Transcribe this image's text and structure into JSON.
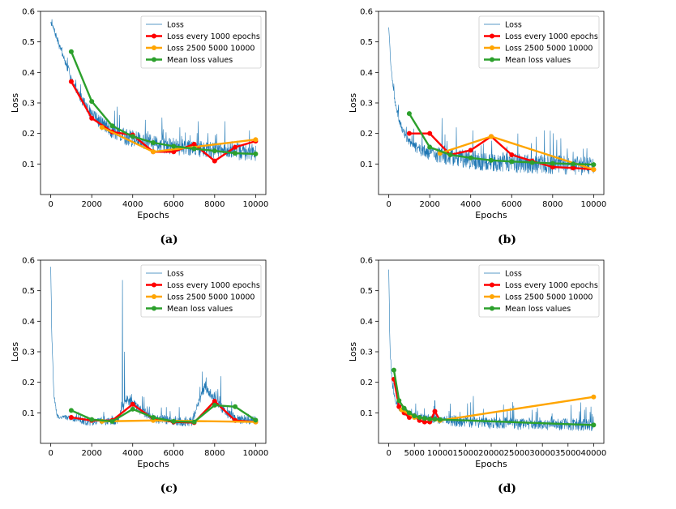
{
  "panels": [
    {
      "caption": "(a)"
    },
    {
      "caption": "(b)"
    },
    {
      "caption": "(c)"
    },
    {
      "caption": "(d)"
    }
  ],
  "colors": {
    "loss": "#1f77b4",
    "every1000": "#ff0000",
    "l2500": "#ffa500",
    "mean": "#2ca02c"
  },
  "chart_data": [
    {
      "type": "line",
      "panel": "(a)",
      "xlabel": "Epochs",
      "ylabel": "Loss",
      "xlim": [
        -500,
        10500
      ],
      "ylim": [
        0.0,
        0.6
      ],
      "xticks": [
        0,
        2000,
        4000,
        6000,
        8000,
        10000
      ],
      "yticks": [
        0.1,
        0.2,
        0.3,
        0.4,
        0.5,
        0.6
      ],
      "legend": [
        "Loss",
        "Loss every 1000 epochs",
        "Loss 2500 5000 10000",
        "Mean loss values"
      ],
      "legend_position": "top-right",
      "loss_curve": {
        "name": "Loss",
        "x": [
          0,
          200,
          500,
          1000,
          1500,
          2000,
          2500,
          3000,
          3500,
          4000,
          5000,
          6000,
          7000,
          8000,
          9000,
          10000
        ],
        "y": [
          0.565,
          0.53,
          0.47,
          0.38,
          0.31,
          0.26,
          0.23,
          0.205,
          0.19,
          0.18,
          0.165,
          0.155,
          0.148,
          0.142,
          0.138,
          0.135
        ],
        "noise": [
          0.012,
          0.035
        ],
        "spikes": [
          [
            6300,
            0.22
          ],
          [
            7200,
            0.24
          ],
          [
            8500,
            0.24
          ],
          [
            9700,
            0.21
          ]
        ]
      },
      "series": [
        {
          "name": "Loss every 1000 epochs",
          "x": [
            1000,
            2000,
            3000,
            4000,
            5000,
            6000,
            7000,
            8000,
            9000,
            10000
          ],
          "y": [
            0.37,
            0.25,
            0.205,
            0.195,
            0.14,
            0.14,
            0.165,
            0.11,
            0.155,
            0.175
          ]
        },
        {
          "name": "Loss 2500 5000 10000",
          "x": [
            2500,
            5000,
            10000
          ],
          "y": [
            0.22,
            0.14,
            0.18
          ]
        },
        {
          "name": "Mean loss values",
          "x": [
            1000,
            2000,
            3000,
            4000,
            5000,
            6000,
            7000,
            8000,
            9000,
            10000
          ],
          "y": [
            0.468,
            0.305,
            0.225,
            0.19,
            0.17,
            0.158,
            0.15,
            0.143,
            0.135,
            0.133
          ]
        }
      ]
    },
    {
      "type": "line",
      "panel": "(b)",
      "xlabel": "Epochs",
      "ylabel": "Loss",
      "xlim": [
        -500,
        10500
      ],
      "ylim": [
        0.0,
        0.6
      ],
      "xticks": [
        0,
        2000,
        4000,
        6000,
        8000,
        10000
      ],
      "yticks": [
        0.1,
        0.2,
        0.3,
        0.4,
        0.5,
        0.6
      ],
      "legend": [
        "Loss",
        "Loss every 1000 epochs",
        "Loss 2500 5000 10000",
        "Mean loss values"
      ],
      "legend_position": "top-right",
      "loss_curve": {
        "name": "Loss",
        "x": [
          0,
          100,
          300,
          600,
          1000,
          1500,
          2000,
          3000,
          4000,
          5000,
          6000,
          7000,
          8000,
          9000,
          10000
        ],
        "y": [
          0.55,
          0.42,
          0.3,
          0.22,
          0.17,
          0.145,
          0.13,
          0.12,
          0.11,
          0.105,
          0.1,
          0.097,
          0.094,
          0.091,
          0.088
        ],
        "noise": [
          0.01,
          0.04
        ],
        "spikes": [
          [
            2600,
            0.25
          ],
          [
            3300,
            0.22
          ],
          [
            4100,
            0.21
          ],
          [
            6300,
            0.2
          ],
          [
            7600,
            0.21
          ],
          [
            9500,
            0.15
          ]
        ]
      },
      "series": [
        {
          "name": "Loss every 1000 epochs",
          "x": [
            1000,
            2000,
            3000,
            4000,
            5000,
            6000,
            7000,
            8000,
            9000,
            10000
          ],
          "y": [
            0.2,
            0.2,
            0.13,
            0.145,
            0.19,
            0.13,
            0.11,
            0.09,
            0.087,
            0.082
          ]
        },
        {
          "name": "Loss 2500 5000 10000",
          "x": [
            2500,
            5000,
            10000
          ],
          "y": [
            0.135,
            0.19,
            0.082
          ]
        },
        {
          "name": "Mean loss values",
          "x": [
            1000,
            2000,
            3000,
            4000,
            5000,
            6000,
            7000,
            8000,
            9000,
            10000
          ],
          "y": [
            0.265,
            0.155,
            0.13,
            0.12,
            0.112,
            0.108,
            0.105,
            0.102,
            0.1,
            0.098
          ]
        }
      ]
    },
    {
      "type": "line",
      "panel": "(c)",
      "xlabel": "Epochs",
      "ylabel": "Loss",
      "xlim": [
        -500,
        10500
      ],
      "ylim": [
        0.0,
        0.6
      ],
      "xticks": [
        0,
        2000,
        4000,
        6000,
        8000,
        10000
      ],
      "yticks": [
        0.1,
        0.2,
        0.3,
        0.4,
        0.5,
        0.6
      ],
      "legend": [
        "Loss",
        "Loss every 1000 epochs",
        "Loss 2500 5000 10000",
        "Mean loss values"
      ],
      "legend_position": "top-right",
      "loss_curve": {
        "name": "Loss",
        "x": [
          0,
          50,
          150,
          300,
          500,
          1000,
          1800,
          2500,
          3300,
          3700,
          4000,
          4300,
          5000,
          6000,
          6900,
          7500,
          8000,
          8500,
          9000,
          10000
        ],
        "y": [
          0.58,
          0.35,
          0.16,
          0.09,
          0.085,
          0.082,
          0.068,
          0.072,
          0.075,
          0.14,
          0.13,
          0.11,
          0.08,
          0.072,
          0.07,
          0.18,
          0.15,
          0.1,
          0.08,
          0.072
        ],
        "noise": [
          0.008,
          0.02
        ],
        "spikes": [
          [
            3500,
            0.535
          ],
          [
            3600,
            0.3
          ],
          [
            7400,
            0.235
          ],
          [
            8300,
            0.22
          ]
        ]
      },
      "series": [
        {
          "name": "Loss every 1000 epochs",
          "x": [
            1000,
            2000,
            3000,
            4000,
            5000,
            6000,
            7000,
            8000,
            9000,
            10000
          ],
          "y": [
            0.085,
            0.075,
            0.075,
            0.128,
            0.08,
            0.07,
            0.068,
            0.138,
            0.075,
            0.07
          ]
        },
        {
          "name": "Loss 2500 5000 10000",
          "x": [
            2500,
            5000,
            10000
          ],
          "y": [
            0.072,
            0.075,
            0.07
          ]
        },
        {
          "name": "Mean loss values",
          "x": [
            1000,
            2000,
            3000,
            4000,
            5000,
            6000,
            7000,
            8000,
            9000,
            10000
          ],
          "y": [
            0.108,
            0.078,
            0.072,
            0.112,
            0.085,
            0.072,
            0.07,
            0.125,
            0.12,
            0.076
          ]
        }
      ]
    },
    {
      "type": "line",
      "panel": "(d)",
      "xlabel": "Epochs",
      "ylabel": "Loss",
      "xlim": [
        -2000,
        42000
      ],
      "ylim": [
        0.0,
        0.6
      ],
      "xticks": [
        0,
        5000,
        10000,
        15000,
        20000,
        25000,
        30000,
        35000,
        40000
      ],
      "yticks": [
        0.1,
        0.2,
        0.3,
        0.4,
        0.5,
        0.6
      ],
      "legend": [
        "Loss",
        "Loss every 1000 epochs",
        "Loss 2500 5000 10000",
        "Mean loss values"
      ],
      "legend_position": "top-right",
      "loss_curve": {
        "name": "Loss",
        "x": [
          0,
          200,
          500,
          1000,
          1500,
          2000,
          3000,
          4000,
          6000,
          8000,
          10000,
          15000,
          20000,
          25000,
          30000,
          35000,
          40000
        ],
        "y": [
          0.57,
          0.33,
          0.22,
          0.16,
          0.13,
          0.115,
          0.1,
          0.09,
          0.085,
          0.08,
          0.075,
          0.07,
          0.066,
          0.063,
          0.061,
          0.06,
          0.058
        ],
        "noise": [
          0.008,
          0.025
        ],
        "spikes": [
          [
            16500,
            0.155
          ],
          [
            9000,
            0.14
          ],
          [
            12000,
            0.13
          ],
          [
            28000,
            0.11
          ],
          [
            39500,
            0.12
          ]
        ]
      },
      "series": [
        {
          "name": "Loss every 1000 epochs",
          "x": [
            1000,
            2000,
            3000,
            4000,
            5000,
            6000,
            7000,
            8000,
            9000,
            10000
          ],
          "y": [
            0.21,
            0.12,
            0.1,
            0.085,
            0.09,
            0.075,
            0.07,
            0.07,
            0.105,
            0.075
          ]
        },
        {
          "name": "Loss 2500 5000 10000",
          "x": [
            2500,
            5000,
            10000,
            40000
          ],
          "y": [
            0.11,
            0.085,
            0.075,
            0.152
          ]
        },
        {
          "name": "Mean loss values",
          "x": [
            1000,
            2000,
            3000,
            4000,
            5000,
            6000,
            7000,
            8000,
            9000,
            10000,
            40000
          ],
          "y": [
            0.24,
            0.14,
            0.115,
            0.1,
            0.09,
            0.085,
            0.082,
            0.08,
            0.079,
            0.078,
            0.06
          ]
        }
      ]
    }
  ]
}
